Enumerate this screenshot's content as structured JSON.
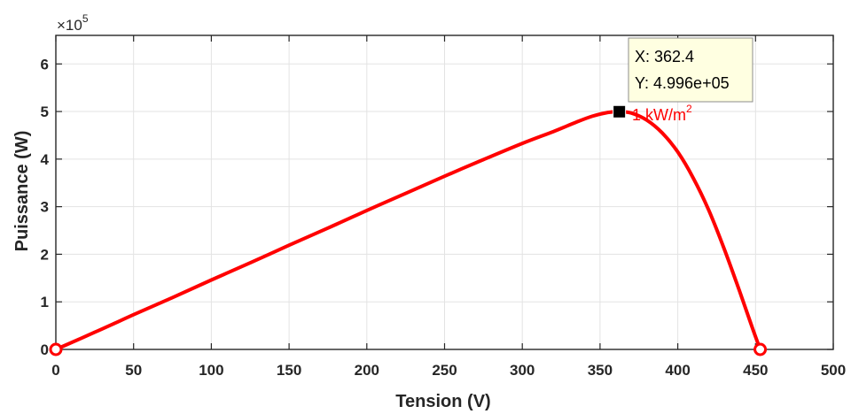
{
  "chart_data": {
    "type": "line",
    "xlabel": "Tension (V)",
    "ylabel": "Puissance (W)",
    "y_exponent_label": "×10",
    "y_exponent_power": "5",
    "xlim": [
      0,
      500
    ],
    "ylim": [
      0,
      6.6
    ],
    "y_scale_factor": 100000,
    "x_ticks": [
      0,
      50,
      100,
      150,
      200,
      250,
      300,
      350,
      400,
      450,
      500
    ],
    "y_ticks": [
      0,
      1,
      2,
      3,
      4,
      5,
      6
    ],
    "x_tick_labels": [
      "0",
      "50",
      "100",
      "150",
      "200",
      "250",
      "300",
      "350",
      "400",
      "450",
      "500"
    ],
    "y_tick_labels": [
      "0",
      "1",
      "2",
      "3",
      "4",
      "5",
      "6"
    ],
    "grid": true,
    "series": [
      {
        "name": "1 kW/m",
        "name_superscript": "2",
        "color": "#ff0000",
        "x": [
          0,
          25,
          50,
          75,
          100,
          125,
          150,
          175,
          200,
          225,
          250,
          275,
          300,
          320,
          335,
          345,
          355,
          362.4,
          370,
          380,
          390,
          400,
          410,
          420,
          430,
          440,
          448,
          453
        ],
        "y": [
          0,
          0.36,
          0.73,
          1.09,
          1.46,
          1.82,
          2.19,
          2.55,
          2.92,
          3.28,
          3.64,
          3.99,
          4.33,
          4.58,
          4.78,
          4.9,
          4.98,
          4.996,
          4.97,
          4.82,
          4.55,
          4.15,
          3.6,
          2.92,
          2.1,
          1.2,
          0.45,
          0
        ]
      }
    ],
    "markers": [
      {
        "shape": "circle",
        "x": 0,
        "y": 0,
        "color": "#ff0000"
      },
      {
        "shape": "circle",
        "x": 453,
        "y": 0,
        "color": "#ff0000"
      },
      {
        "shape": "square",
        "x": 362.4,
        "y": 4.996,
        "color": "#000000"
      }
    ],
    "datatip": {
      "x_text": "X: 362.4",
      "y_text": "Y: 4.996e+05",
      "background": "#ffffe1"
    },
    "colors": {
      "curve": "#ff0000",
      "grid": "#e3e3e3",
      "axis": "#262626"
    }
  }
}
